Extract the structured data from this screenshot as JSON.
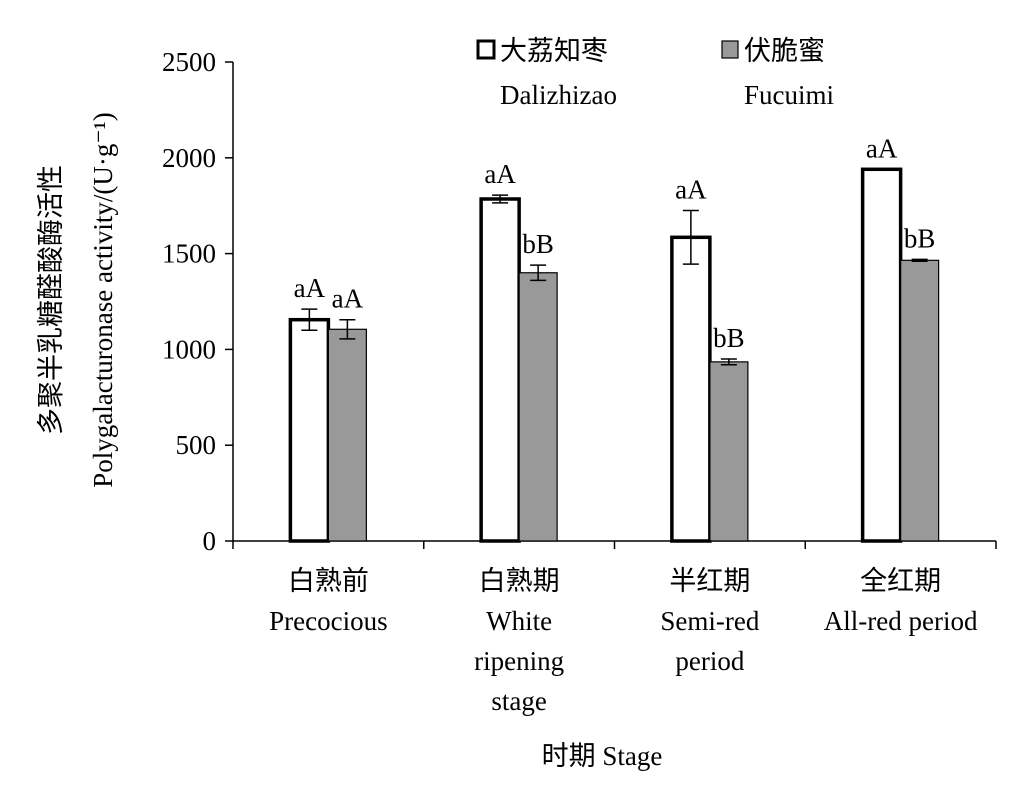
{
  "chart_data": {
    "type": "bar",
    "title": "",
    "xlabel": "时期 Stage",
    "ylabel": {
      "line1": "多聚半乳糖醛酸酶活性",
      "line2": "Polygalacturonase activity/(U·g⁻¹)"
    },
    "ylim": [
      0,
      2500
    ],
    "yticks": [
      0,
      500,
      1000,
      1500,
      2000,
      2500
    ],
    "grid": false,
    "legend_position": "top",
    "categories": [
      [
        "白熟前",
        "Precocious"
      ],
      [
        "白熟期",
        "White",
        "ripening",
        "stage"
      ],
      [
        "半红期",
        "Semi-red",
        "period"
      ],
      [
        "全红期",
        "All-red period"
      ]
    ],
    "series": [
      {
        "name": "大荔知枣",
        "name_en": "Dalizhizao",
        "fill": "#ffffff",
        "stroke": "#000000",
        "values": [
          1155,
          1785,
          1585,
          1940
        ],
        "errors": [
          55,
          20,
          140,
          0
        ],
        "labels": [
          "aA",
          "aA",
          "aA",
          "aA"
        ]
      },
      {
        "name": "伏脆蜜",
        "name_en": "Fucuimi",
        "fill": "#999999",
        "stroke": "#000000",
        "values": [
          1105,
          1400,
          935,
          1465
        ],
        "errors": [
          50,
          40,
          15,
          5
        ],
        "labels": [
          "aA",
          "bB",
          "bB",
          "bB"
        ]
      }
    ]
  }
}
